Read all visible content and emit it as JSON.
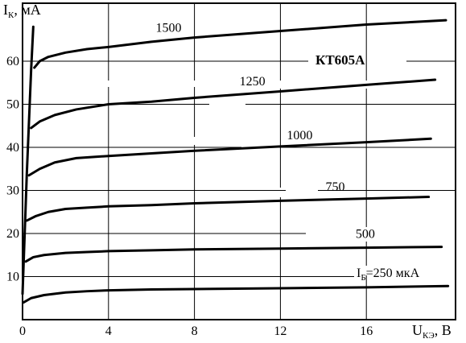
{
  "chart_data": {
    "type": "line",
    "title": "КТ605А",
    "ylabel": {
      "symbol": "I",
      "sub": "К",
      "unit": ", мА"
    },
    "xlabel": {
      "symbol": "U",
      "sub": "КЭ",
      "unit": ", В"
    },
    "xlim": [
      0,
      20
    ],
    "ylim": [
      0,
      70
    ],
    "x_ticks": [
      "0",
      "4",
      "8",
      "12",
      "16"
    ],
    "y_ticks": [
      "10",
      "20",
      "30",
      "40",
      "50",
      "60"
    ],
    "param_label": {
      "symbol": "I",
      "sub": "Б",
      "unit": "=250 мкА"
    },
    "series": [
      {
        "name": "1500",
        "x": [
          0.55,
          0.8,
          1.2,
          2,
          3,
          4,
          6,
          8,
          12,
          16,
          19.7
        ],
        "y": [
          58.5,
          60,
          61,
          62,
          62.8,
          63.3,
          64.5,
          65.5,
          67,
          68.5,
          69.5
        ]
      },
      {
        "name": "1250",
        "x": [
          0.4,
          0.8,
          1.5,
          2.5,
          4,
          6,
          8,
          12,
          16,
          19.2
        ],
        "y": [
          44.5,
          46,
          47.5,
          48.8,
          50,
          50.6,
          51.5,
          53,
          54.5,
          55.7
        ]
      },
      {
        "name": "1000",
        "x": [
          0.3,
          0.8,
          1.5,
          2.5,
          4,
          6,
          8,
          12,
          16,
          19
        ],
        "y": [
          33.5,
          35,
          36.5,
          37.5,
          38,
          38.6,
          39.2,
          40.2,
          41.2,
          42
        ]
      },
      {
        "name": "750",
        "x": [
          0.2,
          0.6,
          1.2,
          2,
          3,
          4,
          6,
          8,
          12,
          16,
          18.9
        ],
        "y": [
          23,
          24,
          25,
          25.7,
          26,
          26.3,
          26.6,
          27,
          27.6,
          28.1,
          28.5
        ]
      },
      {
        "name": "500",
        "x": [
          0.15,
          0.5,
          1,
          2,
          3,
          4,
          6,
          8,
          12,
          16,
          19.5
        ],
        "y": [
          13.5,
          14.5,
          15,
          15.5,
          15.7,
          15.9,
          16.1,
          16.3,
          16.5,
          16.7,
          16.9
        ]
      },
      {
        "name": "250",
        "x": [
          0.05,
          0.4,
          1,
          2,
          3,
          4,
          6,
          8,
          12,
          16,
          19.8
        ],
        "y": [
          4,
          5,
          5.7,
          6.3,
          6.6,
          6.8,
          7,
          7.1,
          7.3,
          7.5,
          7.8
        ]
      }
    ],
    "saturation_line": {
      "x": [
        0,
        0.1,
        0.2,
        0.3,
        0.4,
        0.5
      ],
      "y": [
        6,
        20,
        34,
        46,
        58,
        68
      ]
    },
    "grid": true
  }
}
